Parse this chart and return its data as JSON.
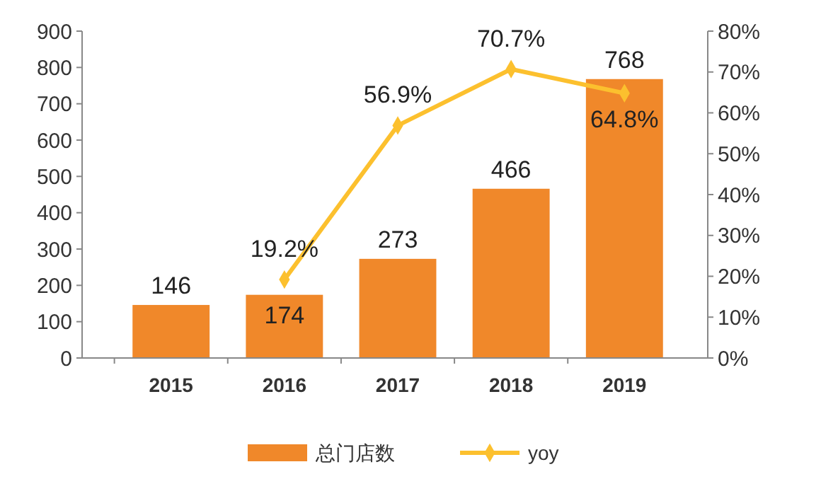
{
  "chart_data": {
    "type": "bar",
    "categories": [
      "2015",
      "2016",
      "2017",
      "2018",
      "2019"
    ],
    "series": [
      {
        "name": "总门店数",
        "color": "#f0882a",
        "values": [
          146,
          174,
          273,
          466,
          768
        ],
        "value_labels": [
          "146",
          "174",
          "273",
          "466",
          "768"
        ]
      },
      {
        "name": "yoy",
        "type": "line",
        "axis": "y2",
        "color": "#fcc02e",
        "marker": "diamond",
        "values": [
          null,
          19.2,
          56.9,
          70.7,
          64.8
        ],
        "value_labels": [
          null,
          "19.2%",
          "56.9%",
          "70.7%",
          "64.8%"
        ]
      }
    ],
    "ylim": [
      0,
      900
    ],
    "yticks": [
      0,
      100,
      200,
      300,
      400,
      500,
      600,
      700,
      800,
      900
    ],
    "y2lim": [
      0,
      80
    ],
    "y2ticks": [
      {
        "value": 0,
        "label": "0%"
      },
      {
        "value": 10,
        "label": "10%"
      },
      {
        "value": 20,
        "label": "20%"
      },
      {
        "value": 30,
        "label": "30%"
      },
      {
        "value": 40,
        "label": "40%"
      },
      {
        "value": 50,
        "label": "50%"
      },
      {
        "value": 60,
        "label": "60%"
      },
      {
        "value": 70,
        "label": "70%"
      },
      {
        "value": 80,
        "label": "80%"
      }
    ],
    "legend": "bottom"
  }
}
